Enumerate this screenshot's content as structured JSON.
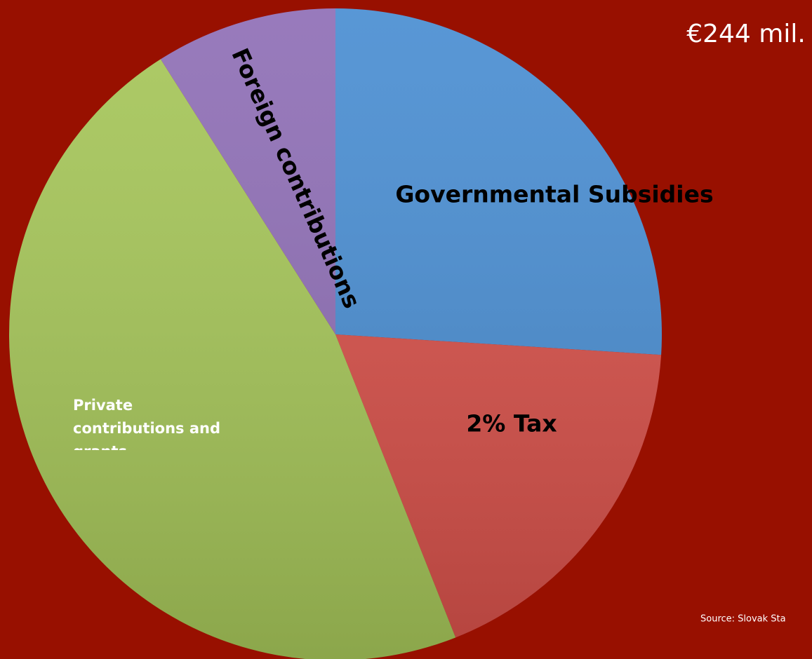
{
  "chart_data": {
    "type": "pie",
    "title": "€244 mil.",
    "source": "Source:  Slovak Sta",
    "categories": [
      "Governmental Subsidies",
      "2% Tax",
      "Private contributions and grants",
      "Foreign contributions"
    ],
    "values": [
      26,
      18,
      47,
      9
    ],
    "colors": [
      "#4a8ed2",
      "#d7514a",
      "#a6c659",
      "#8f6fb6"
    ],
    "start_angle": 0,
    "direction": "clockwise"
  }
}
